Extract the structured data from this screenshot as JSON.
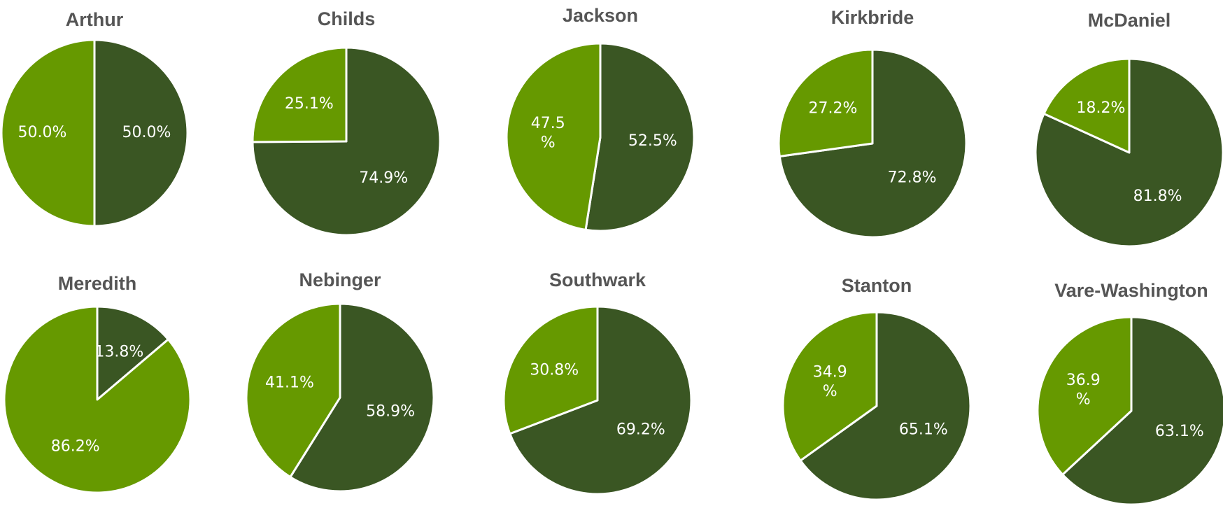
{
  "colors": {
    "dark": "#3a5623",
    "light": "#669900",
    "stroke": "#ffffff",
    "title": "#555555"
  },
  "chart_data": [
    {
      "type": "pie",
      "title": "Arthur",
      "values": [
        50.0,
        50.0
      ],
      "labels": [
        "50.0%",
        "50.0%"
      ]
    },
    {
      "type": "pie",
      "title": "Childs",
      "values": [
        74.9,
        25.1
      ],
      "labels": [
        "74.9%",
        "25.1%"
      ]
    },
    {
      "type": "pie",
      "title": "Jackson",
      "values": [
        52.5,
        47.5
      ],
      "labels": [
        "52.5%",
        "47.5 %"
      ]
    },
    {
      "type": "pie",
      "title": "Kirkbride",
      "values": [
        72.8,
        27.2
      ],
      "labels": [
        "72.8%",
        "27.2%"
      ]
    },
    {
      "type": "pie",
      "title": "McDaniel",
      "values": [
        81.8,
        18.2
      ],
      "labels": [
        "81.8%",
        "18.2%"
      ]
    },
    {
      "type": "pie",
      "title": "Meredith",
      "values": [
        13.8,
        86.2
      ],
      "labels": [
        "13.8%",
        "86.2%"
      ]
    },
    {
      "type": "pie",
      "title": "Nebinger",
      "values": [
        58.9,
        41.1
      ],
      "labels": [
        "58.9%",
        "41.1%"
      ]
    },
    {
      "type": "pie",
      "title": "Southwark",
      "values": [
        69.2,
        30.8
      ],
      "labels": [
        "69.2%",
        "30.8%"
      ]
    },
    {
      "type": "pie",
      "title": "Stanton",
      "values": [
        65.1,
        34.9
      ],
      "labels": [
        "65.1%",
        "34.9 %"
      ]
    },
    {
      "type": "pie",
      "title": "Vare-Washington",
      "values": [
        63.1,
        36.9
      ],
      "labels": [
        "63.1%",
        "36.9 %"
      ]
    }
  ]
}
